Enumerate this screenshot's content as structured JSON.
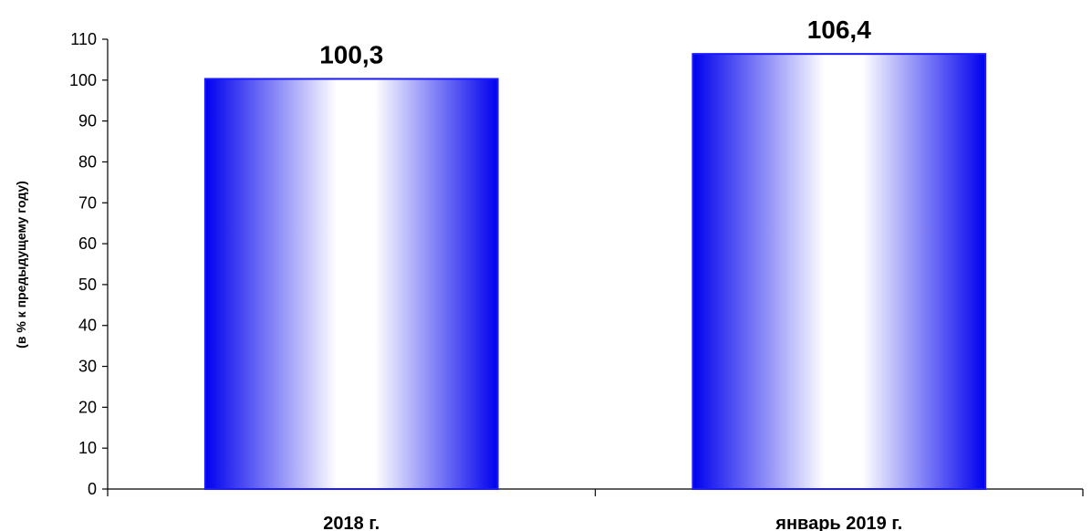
{
  "chart_data": {
    "type": "bar",
    "categories": [
      "2018 г.",
      "январь 2019 г."
    ],
    "values": [
      100.3,
      106.4
    ],
    "data_labels": [
      "100,3",
      "106,4"
    ],
    "title": "",
    "xlabel": "",
    "ylabel": "(в % к  предыдущему  году)",
    "ylim": [
      0,
      110
    ],
    "yticks": [
      0,
      10,
      20,
      30,
      40,
      50,
      60,
      70,
      80,
      90,
      100,
      110
    ],
    "grid": false,
    "legend": "none",
    "colors": {
      "bar_edge": "#1a1aff",
      "bar_fill_dark": "#0000ee",
      "bar_fill_light": "#ffffff"
    }
  }
}
